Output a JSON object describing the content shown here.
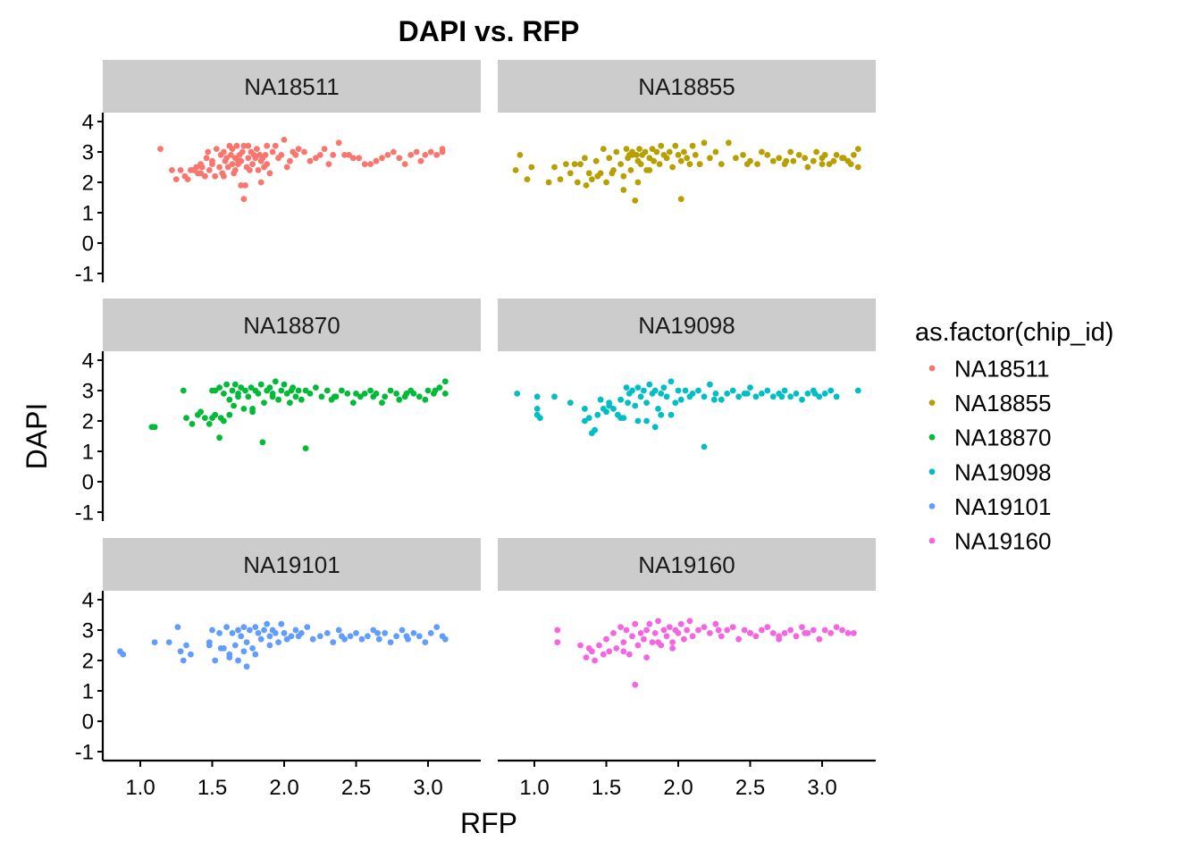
{
  "chart_data": {
    "type": "scatter",
    "title": "DAPI vs. RFP",
    "xlabel": "RFP",
    "ylabel": "DAPI",
    "xlim": [
      0.76,
      3.4
    ],
    "ylim": [
      -1.3,
      4.3
    ],
    "xticks": [
      "1.0",
      "1.5",
      "2.0",
      "2.5",
      "3.0"
    ],
    "xtick_values": [
      1.0,
      1.5,
      2.0,
      2.5,
      3.0
    ],
    "yticks": [
      "4",
      "3",
      "2",
      "1",
      "0",
      "-1"
    ],
    "ytick_values": [
      4,
      3,
      2,
      1,
      0,
      -1
    ],
    "grid": false,
    "facet_by": "chip_id",
    "facet_layout": "3 rows x 2 columns",
    "legend": {
      "title": "as.factor(chip_id)",
      "position": "right",
      "entries": [
        {
          "label": "NA18511",
          "color": "#F8766D"
        },
        {
          "label": "NA18855",
          "color": "#B79F00"
        },
        {
          "label": "NA18870",
          "color": "#00BA38"
        },
        {
          "label": "NA19098",
          "color": "#00BFC4"
        },
        {
          "label": "NA19101",
          "color": "#619CFF"
        },
        {
          "label": "NA19160",
          "color": "#F564E3"
        }
      ]
    },
    "series": [
      {
        "name": "NA18511",
        "color": "#F8766D",
        "x": [
          1.14,
          1.22,
          1.25,
          1.28,
          1.31,
          1.33,
          1.35,
          1.37,
          1.39,
          1.4,
          1.42,
          1.43,
          1.45,
          1.46,
          1.47,
          1.48,
          1.5,
          1.5,
          1.52,
          1.53,
          1.55,
          1.56,
          1.57,
          1.58,
          1.59,
          1.6,
          1.61,
          1.62,
          1.63,
          1.64,
          1.64,
          1.65,
          1.66,
          1.67,
          1.68,
          1.69,
          1.7,
          1.7,
          1.71,
          1.72,
          1.73,
          1.74,
          1.75,
          1.75,
          1.76,
          1.77,
          1.78,
          1.79,
          1.8,
          1.81,
          1.82,
          1.83,
          1.84,
          1.85,
          1.86,
          1.87,
          1.88,
          1.9,
          1.92,
          1.94,
          1.96,
          1.98,
          2.0,
          2.02,
          2.04,
          2.06,
          2.08,
          2.1,
          2.14,
          2.18,
          2.22,
          2.25,
          2.28,
          2.31,
          2.34,
          2.38,
          2.42,
          2.45,
          2.48,
          2.52,
          2.56,
          2.6,
          2.64,
          2.68,
          2.72,
          2.76,
          2.8,
          2.84,
          2.88,
          2.92,
          2.95,
          2.98,
          3.02,
          3.06,
          3.1,
          3.1,
          1.72,
          1.66,
          1.42,
          1.58,
          1.84,
          1.68,
          1.88
        ],
        "y": [
          3.1,
          2.4,
          2.1,
          2.4,
          2.2,
          2.1,
          2.4,
          2.4,
          2.5,
          2.3,
          2.6,
          2.5,
          2.2,
          2.8,
          3.0,
          2.4,
          2.7,
          2.6,
          2.2,
          3.1,
          2.5,
          2.9,
          2.3,
          3.0,
          2.7,
          2.8,
          2.5,
          3.2,
          2.9,
          2.6,
          3.1,
          2.3,
          2.8,
          3.2,
          2.6,
          2.9,
          1.9,
          2.7,
          3.0,
          3.2,
          1.9,
          2.5,
          3.2,
          2.8,
          2.4,
          3.0,
          2.6,
          2.9,
          2.8,
          3.1,
          2.4,
          2.9,
          2.7,
          2.8,
          2.5,
          2.9,
          3.2,
          2.3,
          3.0,
          3.2,
          2.8,
          2.9,
          3.4,
          2.5,
          2.7,
          3.0,
          2.9,
          3.1,
          3.0,
          2.7,
          2.8,
          2.9,
          3.1,
          2.6,
          2.9,
          3.3,
          2.9,
          2.9,
          2.8,
          2.8,
          2.6,
          2.6,
          2.7,
          2.8,
          2.9,
          3.0,
          2.8,
          2.6,
          2.9,
          3.0,
          2.7,
          2.9,
          3.0,
          2.9,
          3.0,
          3.1,
          1.45,
          2.4,
          2.3,
          2.2,
          2.0,
          2.7,
          2.6
        ]
      },
      {
        "name": "NA18855",
        "color": "#B79F00",
        "x": [
          0.87,
          0.9,
          0.95,
          0.98,
          1.1,
          1.14,
          1.18,
          1.22,
          1.25,
          1.28,
          1.3,
          1.32,
          1.35,
          1.38,
          1.4,
          1.43,
          1.46,
          1.48,
          1.5,
          1.52,
          1.55,
          1.57,
          1.6,
          1.62,
          1.64,
          1.65,
          1.66,
          1.67,
          1.68,
          1.7,
          1.71,
          1.72,
          1.73,
          1.74,
          1.75,
          1.77,
          1.78,
          1.8,
          1.82,
          1.83,
          1.85,
          1.87,
          1.88,
          1.9,
          1.92,
          1.94,
          1.96,
          1.98,
          2.0,
          2.02,
          2.04,
          2.06,
          2.08,
          2.1,
          2.12,
          2.15,
          2.18,
          2.22,
          2.26,
          2.3,
          2.35,
          2.4,
          2.45,
          2.5,
          2.55,
          2.58,
          2.62,
          2.66,
          2.7,
          2.74,
          2.78,
          2.8,
          2.84,
          2.88,
          2.9,
          2.94,
          2.96,
          3.0,
          3.02,
          3.05,
          3.08,
          3.1,
          3.14,
          3.18,
          3.2,
          3.22,
          3.25,
          3.25,
          1.72,
          2.02,
          1.62,
          1.68,
          1.44,
          1.36,
          1.54,
          1.8,
          2.15,
          2.48,
          2.75,
          3.0,
          3.15
        ],
        "y": [
          2.4,
          2.9,
          2.1,
          2.5,
          2.0,
          2.5,
          2.1,
          2.6,
          2.3,
          2.6,
          2.0,
          2.6,
          2.8,
          2.3,
          2.1,
          2.7,
          2.3,
          3.1,
          2.0,
          2.8,
          2.4,
          3.0,
          2.6,
          2.2,
          3.1,
          2.8,
          2.9,
          2.4,
          3.0,
          1.4,
          2.9,
          2.7,
          3.1,
          2.6,
          2.9,
          3.0,
          2.4,
          2.8,
          3.1,
          2.7,
          3.0,
          2.6,
          3.2,
          2.9,
          2.8,
          3.0,
          2.5,
          3.2,
          2.9,
          2.7,
          3.0,
          2.8,
          2.6,
          3.2,
          2.9,
          2.6,
          3.3,
          2.8,
          3.0,
          2.6,
          3.3,
          2.8,
          2.9,
          2.7,
          2.6,
          3.0,
          2.9,
          2.7,
          2.8,
          2.6,
          3.0,
          2.7,
          2.9,
          2.8,
          2.5,
          2.7,
          3.0,
          2.8,
          2.9,
          2.6,
          2.7,
          2.9,
          2.8,
          2.7,
          2.6,
          2.9,
          3.1,
          2.5,
          2.0,
          1.45,
          1.75,
          2.9,
          2.2,
          1.9,
          2.3,
          2.4,
          2.6,
          2.6,
          2.7,
          2.6,
          2.8
        ]
      },
      {
        "name": "NA18870",
        "color": "#00BA38",
        "x": [
          1.08,
          1.1,
          1.3,
          1.32,
          1.4,
          1.45,
          1.48,
          1.5,
          1.52,
          1.55,
          1.56,
          1.58,
          1.6,
          1.62,
          1.64,
          1.65,
          1.66,
          1.68,
          1.7,
          1.72,
          1.73,
          1.75,
          1.77,
          1.78,
          1.8,
          1.82,
          1.84,
          1.86,
          1.88,
          1.9,
          1.92,
          1.94,
          1.96,
          1.98,
          2.0,
          2.02,
          2.04,
          2.06,
          2.08,
          2.1,
          2.12,
          2.15,
          2.18,
          2.22,
          2.26,
          2.3,
          2.33,
          2.36,
          2.4,
          2.44,
          2.48,
          2.5,
          2.53,
          2.56,
          2.6,
          2.64,
          2.68,
          2.7,
          2.74,
          2.78,
          2.8,
          2.84,
          2.88,
          2.9,
          2.94,
          2.98,
          3.0,
          3.04,
          3.08,
          3.12,
          3.12,
          1.85,
          2.15,
          1.55,
          1.58,
          1.62,
          1.5,
          1.42,
          1.36,
          1.52,
          1.68,
          1.78,
          1.92,
          2.05,
          2.35,
          2.62,
          2.85,
          3.05
        ],
        "y": [
          1.8,
          1.8,
          3.0,
          2.1,
          2.2,
          2.1,
          1.9,
          3.0,
          2.2,
          3.1,
          2.1,
          2.9,
          3.2,
          2.7,
          3.0,
          2.5,
          3.2,
          2.9,
          3.1,
          2.4,
          3.0,
          2.8,
          3.1,
          2.3,
          3.0,
          2.9,
          3.2,
          2.6,
          3.0,
          3.1,
          2.8,
          3.3,
          2.7,
          3.0,
          3.2,
          2.9,
          2.6,
          3.1,
          2.8,
          3.0,
          2.7,
          3.0,
          2.9,
          3.1,
          2.8,
          3.0,
          2.7,
          2.8,
          3.0,
          2.9,
          2.6,
          2.9,
          2.8,
          2.9,
          3.0,
          2.9,
          2.6,
          2.8,
          3.0,
          2.9,
          2.7,
          2.8,
          3.0,
          2.9,
          2.8,
          2.7,
          3.0,
          2.9,
          3.1,
          2.9,
          3.3,
          1.3,
          1.1,
          1.45,
          2.0,
          2.2,
          2.1,
          2.3,
          1.9,
          3.0,
          2.8,
          2.4,
          2.9,
          3.0,
          2.8,
          2.8,
          2.9,
          3.0
        ]
      },
      {
        "name": "NA19098",
        "color": "#00BFC4",
        "x": [
          0.88,
          1.02,
          1.02,
          1.02,
          1.04,
          1.14,
          1.25,
          1.35,
          1.38,
          1.4,
          1.44,
          1.46,
          1.48,
          1.5,
          1.52,
          1.55,
          1.58,
          1.6,
          1.62,
          1.64,
          1.65,
          1.66,
          1.68,
          1.7,
          1.72,
          1.74,
          1.76,
          1.78,
          1.8,
          1.82,
          1.84,
          1.86,
          1.88,
          1.9,
          1.92,
          1.95,
          1.98,
          2.0,
          2.02,
          2.05,
          2.08,
          2.1,
          2.14,
          2.18,
          2.22,
          2.26,
          2.3,
          2.34,
          2.38,
          2.42,
          2.46,
          2.5,
          2.54,
          2.58,
          2.62,
          2.66,
          2.7,
          2.74,
          2.78,
          2.82,
          2.86,
          2.9,
          2.94,
          2.98,
          3.02,
          3.06,
          3.1,
          3.25,
          2.18,
          1.42,
          1.35,
          1.72,
          1.84,
          1.88,
          1.6,
          1.52,
          1.78,
          1.95,
          2.25,
          2.48,
          2.72,
          2.95
        ],
        "y": [
          2.9,
          2.8,
          2.4,
          2.2,
          2.1,
          2.8,
          2.6,
          2.0,
          2.1,
          1.6,
          2.2,
          2.7,
          2.4,
          2.3,
          2.6,
          2.4,
          2.2,
          2.7,
          2.1,
          3.1,
          2.6,
          2.9,
          3.0,
          2.5,
          3.1,
          2.8,
          3.0,
          2.6,
          3.2,
          2.9,
          3.0,
          2.4,
          2.9,
          3.1,
          2.8,
          3.3,
          2.6,
          3.0,
          2.7,
          3.0,
          2.8,
          2.9,
          3.0,
          2.8,
          3.2,
          2.9,
          2.7,
          2.9,
          3.0,
          2.8,
          2.9,
          3.1,
          2.8,
          2.9,
          3.0,
          2.8,
          2.9,
          3.0,
          2.8,
          2.9,
          2.7,
          2.9,
          3.0,
          2.8,
          2.9,
          3.0,
          2.8,
          3.0,
          1.15,
          1.7,
          2.4,
          2.0,
          1.8,
          2.2,
          2.1,
          2.5,
          2.0,
          2.2,
          2.7,
          2.9,
          2.8,
          2.9
        ]
      },
      {
        "name": "NA19101",
        "color": "#619CFF",
        "x": [
          0.86,
          0.88,
          1.1,
          1.2,
          1.26,
          1.28,
          1.3,
          1.32,
          1.35,
          1.48,
          1.5,
          1.52,
          1.55,
          1.58,
          1.6,
          1.62,
          1.64,
          1.66,
          1.68,
          1.7,
          1.72,
          1.74,
          1.76,
          1.78,
          1.8,
          1.82,
          1.84,
          1.86,
          1.88,
          1.9,
          1.92,
          1.94,
          1.96,
          1.98,
          2.0,
          2.02,
          2.05,
          2.08,
          2.12,
          2.16,
          2.2,
          2.25,
          2.3,
          2.34,
          2.38,
          2.42,
          2.46,
          2.5,
          2.54,
          2.58,
          2.62,
          2.66,
          2.7,
          2.74,
          2.78,
          2.82,
          2.86,
          2.9,
          2.94,
          2.98,
          3.02,
          3.06,
          3.1,
          3.12,
          1.74,
          1.68,
          1.62,
          1.56,
          1.48,
          1.72,
          1.8,
          1.9,
          2.0,
          2.1,
          2.4,
          2.65,
          2.85
        ],
        "y": [
          2.3,
          2.2,
          2.6,
          2.6,
          3.1,
          2.3,
          2.0,
          2.5,
          2.2,
          2.5,
          3.0,
          2.0,
          2.9,
          2.4,
          3.1,
          2.2,
          2.9,
          2.5,
          3.0,
          2.8,
          3.1,
          2.6,
          3.0,
          2.4,
          3.1,
          2.9,
          2.7,
          3.0,
          3.2,
          2.8,
          3.0,
          2.9,
          2.6,
          3.2,
          2.9,
          2.7,
          2.8,
          3.0,
          2.9,
          3.1,
          2.7,
          2.8,
          2.9,
          2.6,
          3.0,
          2.7,
          2.8,
          2.9,
          2.7,
          2.8,
          3.0,
          2.7,
          2.9,
          2.6,
          2.8,
          3.0,
          2.7,
          2.9,
          2.8,
          2.6,
          2.9,
          3.1,
          2.8,
          2.7,
          1.8,
          2.0,
          2.1,
          2.4,
          2.6,
          2.3,
          2.2,
          2.5,
          2.9,
          2.8,
          2.8,
          2.9,
          2.8
        ]
      },
      {
        "name": "NA19160",
        "color": "#F564E3",
        "x": [
          1.16,
          1.16,
          1.32,
          1.36,
          1.38,
          1.4,
          1.42,
          1.45,
          1.48,
          1.5,
          1.52,
          1.55,
          1.57,
          1.6,
          1.62,
          1.64,
          1.66,
          1.68,
          1.7,
          1.72,
          1.74,
          1.76,
          1.78,
          1.8,
          1.82,
          1.84,
          1.86,
          1.88,
          1.9,
          1.92,
          1.94,
          1.96,
          1.98,
          2.0,
          2.02,
          2.04,
          2.06,
          2.08,
          2.1,
          2.14,
          2.18,
          2.22,
          2.26,
          2.3,
          2.34,
          2.38,
          2.42,
          2.46,
          2.5,
          2.54,
          2.58,
          2.62,
          2.66,
          2.7,
          2.74,
          2.78,
          2.82,
          2.86,
          2.9,
          2.94,
          2.98,
          3.02,
          3.06,
          3.1,
          3.14,
          3.18,
          3.22,
          1.7,
          1.62,
          1.78,
          1.86,
          1.96,
          2.28,
          2.5,
          2.7,
          2.88
        ],
        "y": [
          3.0,
          2.6,
          2.5,
          2.1,
          2.4,
          2.3,
          2.0,
          2.5,
          2.2,
          2.7,
          2.3,
          2.9,
          2.4,
          3.1,
          2.6,
          3.0,
          2.2,
          2.8,
          3.2,
          2.5,
          2.9,
          2.7,
          3.0,
          3.2,
          2.6,
          2.9,
          3.3,
          2.5,
          3.0,
          2.8,
          3.1,
          2.6,
          3.0,
          2.9,
          3.2,
          2.7,
          3.0,
          3.3,
          2.8,
          3.0,
          3.1,
          2.9,
          3.2,
          2.8,
          3.0,
          3.1,
          2.7,
          3.0,
          2.9,
          2.8,
          3.0,
          3.1,
          2.9,
          2.7,
          2.9,
          3.0,
          2.8,
          3.1,
          2.9,
          3.0,
          2.7,
          3.0,
          2.9,
          3.1,
          3.0,
          2.9,
          2.9,
          1.2,
          2.3,
          2.1,
          2.6,
          2.4,
          3.0,
          2.9,
          2.8,
          2.9
        ]
      }
    ]
  }
}
